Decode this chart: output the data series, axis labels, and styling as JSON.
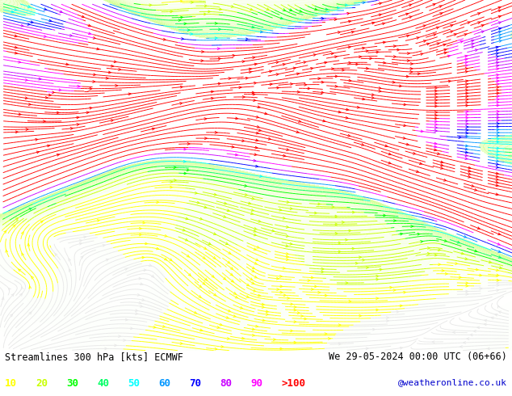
{
  "title_left": "Streamlines 300 hPa [kts] ECMWF",
  "title_right": "We 29-05-2024 00:00 UTC (06+66)",
  "credit": "@weatheronline.co.uk",
  "legend_values": [
    "10",
    "20",
    "30",
    "40",
    "50",
    "60",
    "70",
    "80",
    "90",
    ">100"
  ],
  "legend_colors": [
    "#ffff00",
    "#c8ff00",
    "#00ff00",
    "#00ff64",
    "#00ffff",
    "#0096ff",
    "#0000ff",
    "#c800ff",
    "#ff00ff",
    "#ff0000"
  ],
  "bg_color": "#ffffff",
  "label_color": "#000000",
  "credit_color": "#0000cc",
  "figsize": [
    6.34,
    4.9
  ],
  "dpi": 100,
  "map_bg_colors": [
    "#ffffff",
    "#f0ffe0",
    "#d8ffa0",
    "#c0ff80"
  ],
  "speed_bounds": [
    0,
    10,
    20,
    30,
    40,
    50,
    60,
    70,
    80,
    90,
    100,
    200
  ],
  "speed_colors": [
    "#e8e8e8",
    "#ffff00",
    "#c8ff00",
    "#00ff00",
    "#00ff64",
    "#00ffff",
    "#0096ff",
    "#0000ff",
    "#c800ff",
    "#ff00ff",
    "#ff0000"
  ]
}
